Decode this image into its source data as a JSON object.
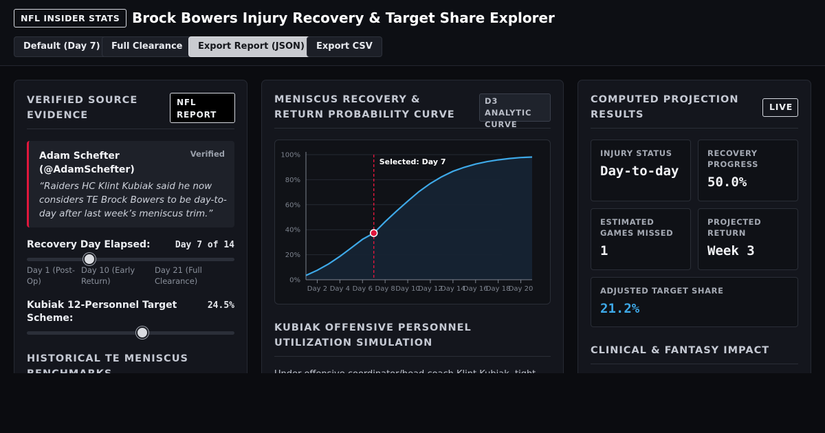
{
  "header": {
    "brand_badge": "NFL INSIDER STATS",
    "title": "Brock Bowers Injury Recovery & Target Share Explorer",
    "buttons": [
      "Default (Day 7)",
      "Full Clearance",
      "Export Report (JSON)",
      "Export CSV"
    ],
    "active_button": "Export Report (JSON)"
  },
  "left_panel": {
    "title": "VERIFIED SOURCE EVIDENCE",
    "tag": "NFL REPORT",
    "quote": {
      "author": "Adam Schefter (@AdamSchefter)",
      "status": "Verified",
      "text": "“Raiders HC Klint Kubiak said he now considers TE Brock Bowers to be day-to-day after last week’s meniscus trim.”"
    },
    "recovery_slider": {
      "label": "Recovery Day Elapsed:",
      "value_text": "Day 7 of 14",
      "value": 7,
      "min": 1,
      "max": 21,
      "notes": [
        "Day 1 (Post-Op)",
        "Day 10 (Early Return)",
        "Day 21 (Full Clearance)"
      ]
    },
    "target_slider": {
      "label": "Kubiak 12-Personnel Target Scheme:",
      "value_text": "24.5%",
      "fraction": 0.555
    },
    "next_section_title": "HISTORICAL TE MENISCUS BENCHMARKS"
  },
  "center_panel": {
    "title": "MENISCUS RECOVERY & RETURN PROBABILITY CURVE",
    "tag": "D3 ANALYTIC CURVE",
    "next_section_title": "KUBIAK OFFENSIVE PERSONNEL UTILIZATION SIMULATION",
    "next_section_text": "Under offensive coordinator/head coach Klint Kubiak, tight"
  },
  "chart_data": {
    "type": "area",
    "x": [
      1,
      2,
      3,
      4,
      5,
      6,
      7,
      8,
      9,
      10,
      11,
      12,
      13,
      14,
      15,
      16,
      17,
      18,
      19,
      20,
      21
    ],
    "series": [
      {
        "values": [
          3.4,
          7.6,
          12.6,
          18.6,
          25.4,
          32.3,
          37.3,
          46.3,
          54.8,
          62.8,
          70.5,
          77.0,
          82.3,
          86.7,
          89.9,
          92.5,
          94.4,
          95.8,
          96.9,
          97.7,
          98.1
        ]
      }
    ],
    "ylim": [
      0,
      100
    ],
    "xlim": [
      1,
      21
    ],
    "y_ticks": [
      "0%",
      "20%",
      "40%",
      "60%",
      "80%",
      "100%"
    ],
    "x_ticks": [
      "Day 2",
      "Day 4",
      "Day 6",
      "Day 8",
      "Day 10",
      "Day 12",
      "Day 14",
      "Day 16",
      "Day 18",
      "Day 20"
    ],
    "x_tick_values": [
      2,
      4,
      6,
      8,
      10,
      12,
      14,
      16,
      18,
      20
    ],
    "selected_day": 7,
    "selected_value": 37.3,
    "selected_label": "Selected: Day 7",
    "colors": {
      "line": "#3ea9e8",
      "marker": "#e0173c",
      "area": "#162433"
    },
    "grid": true
  },
  "right_panel": {
    "title": "COMPUTED PROJECTION RESULTS",
    "tag": "LIVE",
    "metrics": [
      {
        "label": "INJURY STATUS",
        "value": "Day-to-day"
      },
      {
        "label": "RECOVERY PROGRESS",
        "value": "50.0%"
      },
      {
        "label": "ESTIMATED GAMES MISSED",
        "value": "1"
      },
      {
        "label": "PROJECTED RETURN",
        "value": "Week 3"
      },
      {
        "label": "ADJUSTED TARGET SHARE",
        "value": "21.2%"
      }
    ],
    "highlight_color": "#3ea9e8",
    "next_section_title": "CLINICAL & FANTASY IMPACT"
  }
}
